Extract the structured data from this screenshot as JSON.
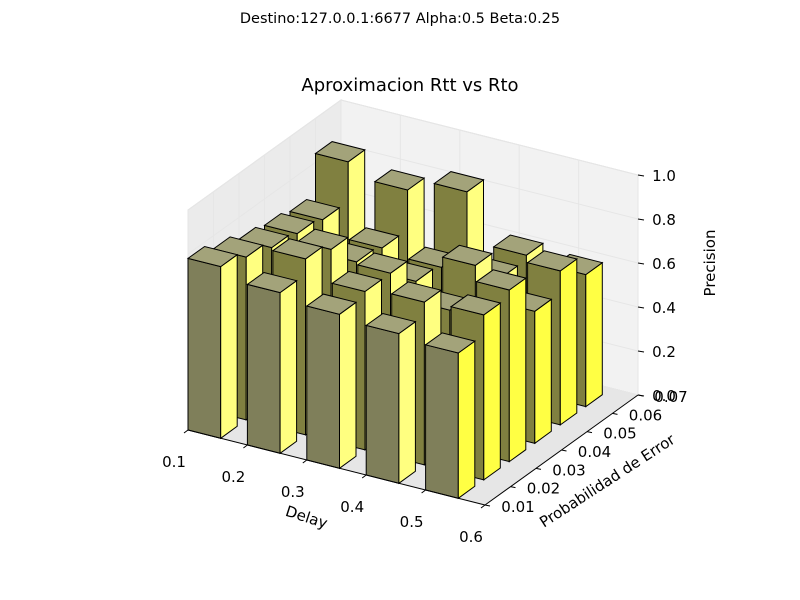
{
  "header": {
    "suptitle": "Destino:127.0.0.1:6677     Alpha:0.5     Beta:0.25"
  },
  "chart_data": {
    "type": "bar3d",
    "title": "Aproximacion Rtt vs Rto",
    "xlabel": "Delay",
    "ylabel": "Probabilidad de Error",
    "zlabel": "Precision",
    "x_ticks": [
      "0.1",
      "0.2",
      "0.3",
      "0.4",
      "0.5",
      "0.6"
    ],
    "y_ticks": [
      "0.01",
      "0.02",
      "0.03",
      "0.04",
      "0.05",
      "0.06",
      "0.07"
    ],
    "z_ticks": [
      "0.0",
      "0.2",
      "0.4",
      "0.6",
      "0.8",
      "1.0"
    ],
    "xlim": [
      0.1,
      0.6
    ],
    "ylim": [
      0.01,
      0.07
    ],
    "zlim": [
      0.0,
      1.0
    ],
    "grid": true,
    "delays": [
      0.1,
      0.2,
      0.3,
      0.4,
      0.5
    ],
    "probabilities": [
      0.01,
      0.02,
      0.03,
      0.04,
      0.05,
      0.06
    ],
    "precision": [
      [
        0.78,
        0.73,
        0.7,
        0.68,
        0.66
      ],
      [
        0.74,
        0.8,
        0.72,
        0.74,
        0.75
      ],
      [
        0.7,
        0.76,
        0.72,
        0.62,
        0.78
      ],
      [
        0.68,
        0.62,
        0.6,
        0.74,
        0.6
      ],
      [
        0.66,
        0.6,
        0.58,
        0.6,
        0.7
      ],
      [
        0.84,
        0.78,
        0.84,
        0.62,
        0.6
      ]
    ],
    "colors": {
      "top": "#a3a37a",
      "front_left": "#7f7f5a",
      "front_right": "#808040",
      "side": "#ffff80",
      "side_bright": "#ffff44"
    }
  }
}
